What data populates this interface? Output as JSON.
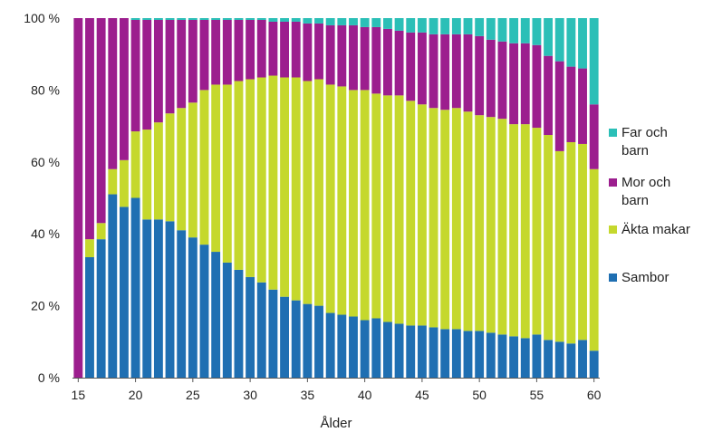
{
  "chart_data": {
    "type": "bar",
    "stacked": true,
    "normalized": true,
    "title": "",
    "xlabel": "Ålder",
    "ylabel": "",
    "x": [
      15,
      16,
      17,
      18,
      19,
      20,
      21,
      22,
      23,
      24,
      25,
      26,
      27,
      28,
      29,
      30,
      31,
      32,
      33,
      34,
      35,
      36,
      37,
      38,
      39,
      40,
      41,
      42,
      43,
      44,
      45,
      46,
      47,
      48,
      49,
      50,
      51,
      52,
      53,
      54,
      55,
      56,
      57,
      58,
      59,
      60
    ],
    "x_tick_values": [
      15,
      20,
      25,
      30,
      35,
      40,
      45,
      50,
      55,
      60
    ],
    "x_tick_labels": [
      "15",
      "20",
      "25",
      "30",
      "35",
      "40",
      "45",
      "50",
      "55",
      "60"
    ],
    "ylim": [
      0,
      100
    ],
    "y_tick_values": [
      0,
      20,
      40,
      60,
      80,
      100
    ],
    "y_tick_labels": [
      "0 %",
      "20 %",
      "40 %",
      "60 %",
      "80 %",
      "100 %"
    ],
    "grid": false,
    "legend_position": "right",
    "series": [
      {
        "name": "Sambor",
        "color": "#1f6fb2",
        "values": [
          0,
          33.5,
          38.5,
          51,
          47.5,
          50,
          44,
          44,
          43.5,
          41,
          39,
          37,
          35,
          32,
          30,
          28,
          26.5,
          24.5,
          22.5,
          21.5,
          20.5,
          20,
          18,
          17.5,
          17,
          16,
          16.5,
          15.5,
          15,
          14.5,
          14.5,
          14,
          13.5,
          13.5,
          13,
          13,
          12.5,
          12,
          11.5,
          11,
          12,
          10.5,
          10,
          9.5,
          10.5,
          7.5
        ]
      },
      {
        "name": "Äkta makar",
        "color": "#c5d82d",
        "values": [
          0,
          5,
          4.5,
          7,
          13,
          18.5,
          25,
          27,
          30,
          34,
          37.5,
          43,
          46.5,
          49.5,
          52.5,
          55,
          57,
          59.5,
          61,
          62,
          62,
          63,
          63.5,
          63.5,
          63,
          64,
          62.5,
          63,
          63.5,
          62.5,
          61.5,
          61,
          61,
          61.5,
          61,
          60,
          60,
          60,
          59,
          59.5,
          57.5,
          57,
          53,
          56,
          54.5,
          50.5
        ]
      },
      {
        "name": "Mor och barn",
        "color": "#9c1e8e",
        "values": [
          100,
          61.5,
          57,
          42,
          39.5,
          31,
          30.5,
          28.5,
          26,
          24.5,
          23,
          19.5,
          18,
          18,
          17,
          16.5,
          16,
          15,
          15.5,
          15.5,
          16,
          15.5,
          16.5,
          17,
          18,
          17.5,
          18.5,
          18.5,
          18,
          19,
          20,
          20.5,
          21,
          20.5,
          21.5,
          22,
          21.5,
          21.5,
          22.5,
          22.5,
          23,
          22,
          25,
          21,
          21,
          18
        ]
      },
      {
        "name": "Far och barn",
        "color": "#2bbfb7",
        "values": [
          0,
          0,
          0,
          0,
          0,
          0.5,
          0.5,
          0.5,
          0.5,
          0.5,
          0.5,
          0.5,
          0.5,
          0.5,
          0.5,
          0.5,
          0.5,
          1,
          1,
          1,
          1.5,
          1.5,
          2,
          2,
          2,
          2.5,
          2.5,
          3,
          3.5,
          4,
          4,
          4.5,
          4.5,
          4.5,
          4.5,
          5,
          6,
          6.5,
          7,
          7,
          7.5,
          10.5,
          12,
          13.5,
          14,
          24
        ]
      }
    ],
    "legend": [
      {
        "lines": [
          "Far och",
          "barn"
        ],
        "color": "#2bbfb7"
      },
      {
        "lines": [
          "Mor och",
          "barn"
        ],
        "color": "#9c1e8e"
      },
      {
        "lines": [
          "Äkta makar"
        ],
        "color": "#c5d82d"
      },
      {
        "lines": [
          "Sambor"
        ],
        "color": "#1f6fb2"
      }
    ]
  }
}
